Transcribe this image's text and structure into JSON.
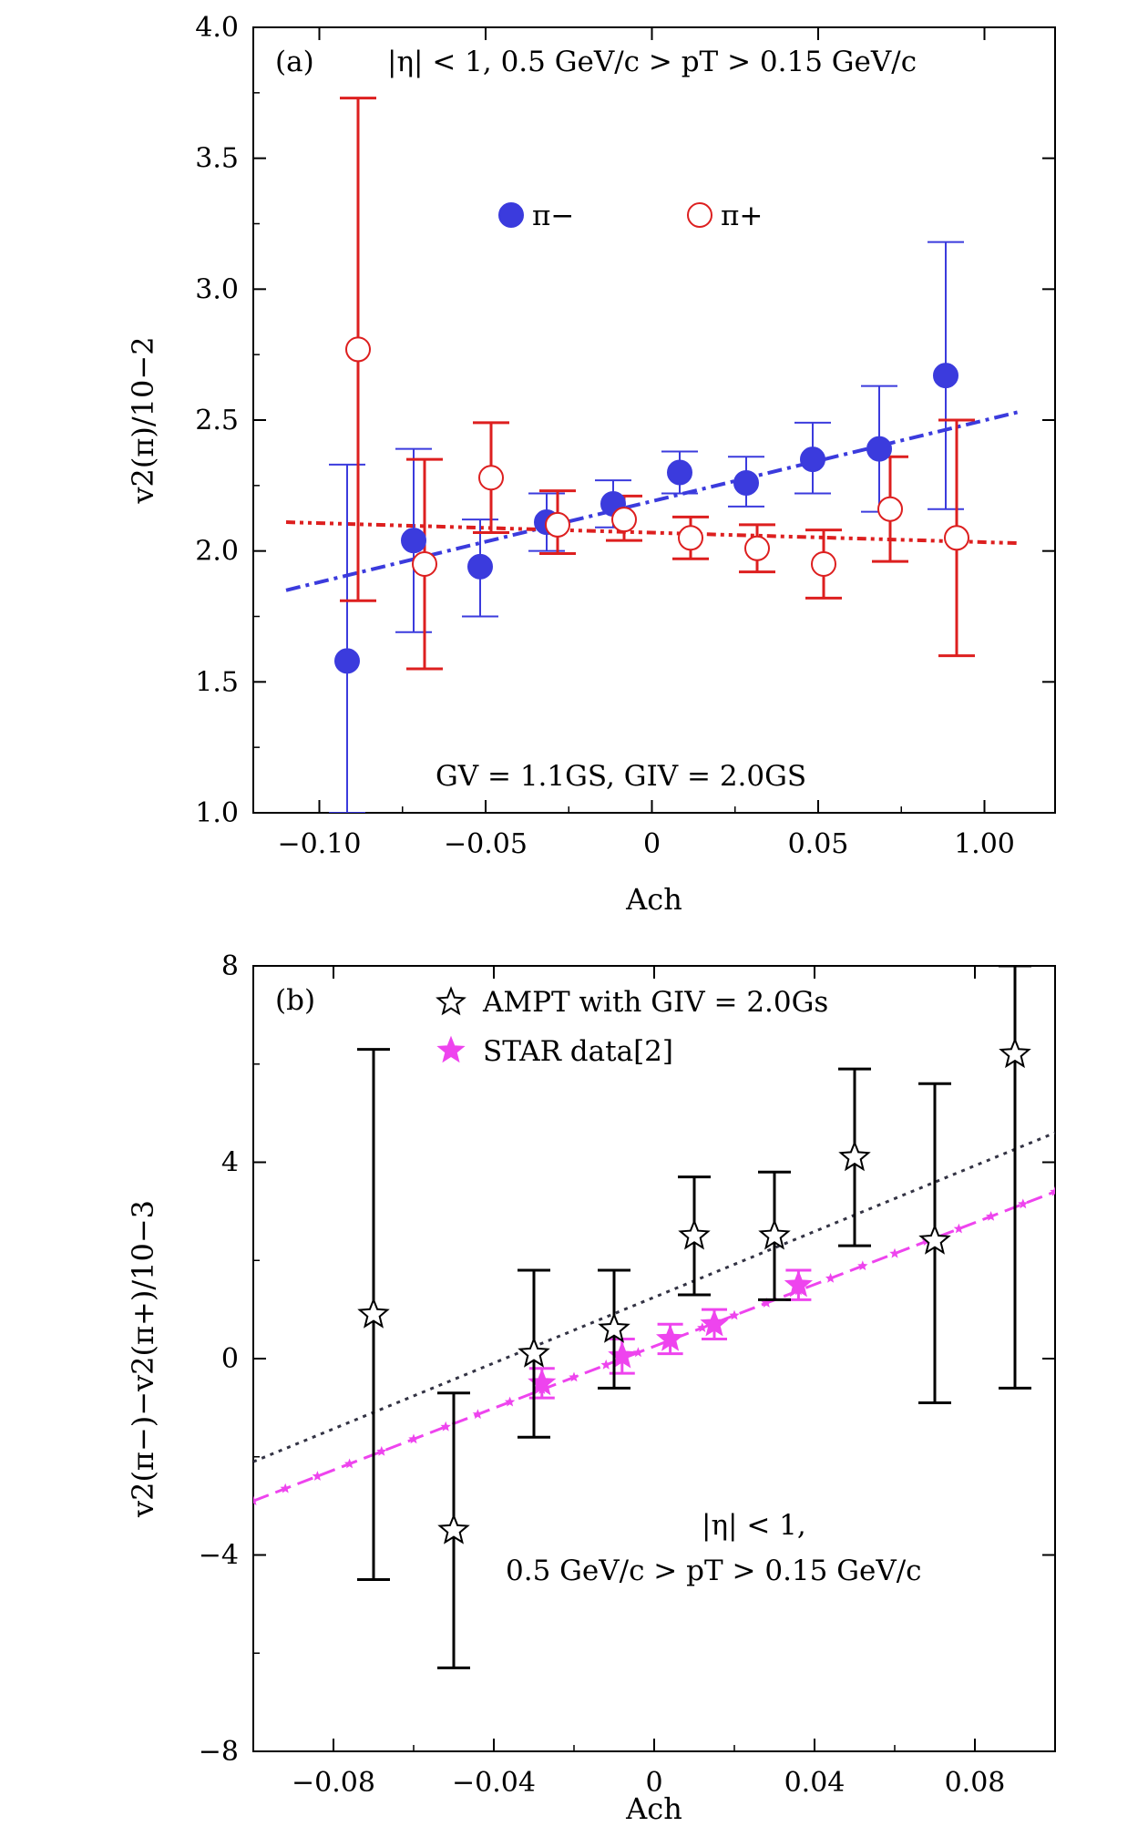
{
  "chart_data": [
    {
      "type": "scatter",
      "panel_label": "(a)",
      "xlabel": "Ach",
      "ylabel": "v2(π)/10−2",
      "x_tick_labels": [
        "−0.10",
        "−0.05",
        "0",
        "0.05",
        "1.00"
      ],
      "y_tick_labels": [
        "1.0",
        "1.5",
        "2.0",
        "2.5",
        "3.0",
        "3.5",
        "4.0"
      ],
      "ylim": [
        1.0,
        4.0
      ],
      "cut_text": "|η| < 1, 0.5 GeV/c > pT > 0.15 GeV/c",
      "param_text": "GV = 1.1GS, GIV = 2.0GS",
      "series": [
        {
          "name": "π−",
          "color": "#3b3bdd",
          "marker": "filled-circle",
          "x": [
            -0.09,
            -0.07,
            -0.05,
            -0.03,
            -0.01,
            0.01,
            0.03,
            0.05,
            0.07,
            0.09
          ],
          "y": [
            1.58,
            2.04,
            1.94,
            2.11,
            2.18,
            2.3,
            2.26,
            2.35,
            2.39,
            2.67
          ],
          "err_low": [
            1.0,
            1.69,
            1.75,
            2.0,
            2.09,
            2.22,
            2.17,
            2.22,
            2.15,
            2.16
          ],
          "err_high": [
            2.33,
            2.39,
            2.12,
            2.22,
            2.27,
            2.38,
            2.36,
            2.49,
            2.63,
            3.18
          ],
          "fit": {
            "x": [
              -0.11,
              0.11
            ],
            "y": [
              1.85,
              2.53
            ]
          }
        },
        {
          "name": "π+",
          "color": "#dd1f1f",
          "marker": "open-circle",
          "x": [
            -0.09,
            -0.07,
            -0.05,
            -0.03,
            -0.01,
            0.01,
            0.03,
            0.05,
            0.07,
            0.09
          ],
          "y": [
            2.77,
            1.95,
            2.28,
            2.1,
            2.12,
            2.05,
            2.01,
            1.95,
            2.16,
            2.05
          ],
          "err_low": [
            1.81,
            1.55,
            2.07,
            1.99,
            2.04,
            1.97,
            1.92,
            1.82,
            1.96,
            1.6
          ],
          "err_high": [
            3.73,
            2.35,
            2.49,
            2.23,
            2.21,
            2.13,
            2.1,
            2.08,
            2.36,
            2.5
          ],
          "fit": {
            "x": [
              -0.11,
              0.11
            ],
            "y": [
              2.11,
              2.03
            ]
          }
        }
      ]
    },
    {
      "type": "scatter",
      "panel_label": "(b)",
      "xlabel": "Ach",
      "ylabel": "v2(π−)−v2(π+)/10−3",
      "x_tick_labels": [
        "−0.08",
        "−0.04",
        "0",
        "0.04",
        "0.08"
      ],
      "y_tick_labels": [
        "−8",
        "−4",
        "0",
        "4",
        "8"
      ],
      "xlim": [
        -0.1,
        0.1
      ],
      "ylim": [
        -8,
        8
      ],
      "cut_text_1": "|η| < 1,",
      "cut_text_2": "0.5 GeV/c > pT > 0.15 GeV/c",
      "series": [
        {
          "name": "AMPT with GIV = 2.0Gs",
          "color": "#000000",
          "marker": "open-star",
          "x": [
            -0.07,
            -0.05,
            -0.03,
            -0.01,
            0.01,
            0.03,
            0.05,
            0.07,
            0.09
          ],
          "y": [
            0.9,
            -3.5,
            0.1,
            0.6,
            2.5,
            2.5,
            4.1,
            2.4,
            6.2
          ],
          "err_low": [
            -4.5,
            -6.3,
            -1.6,
            -0.6,
            1.3,
            1.2,
            2.3,
            -0.9,
            -0.6
          ],
          "err_high": [
            6.3,
            -0.7,
            1.8,
            1.8,
            3.7,
            3.8,
            5.9,
            5.6,
            8.0
          ],
          "fit": {
            "x": [
              -0.1,
              0.1
            ],
            "y": [
              -2.1,
              4.6
            ]
          }
        },
        {
          "name": "STAR data[2]",
          "color": "#ee44ee",
          "marker": "filled-star",
          "x": [
            -0.028,
            -0.008,
            0.004,
            0.015,
            0.036
          ],
          "y": [
            -0.5,
            0.05,
            0.4,
            0.7,
            1.5
          ],
          "err_low": [
            -0.8,
            -0.3,
            0.1,
            0.4,
            1.2
          ],
          "err_high": [
            -0.2,
            0.4,
            0.7,
            1.0,
            1.8
          ],
          "fit": {
            "x": [
              -0.1,
              0.1
            ],
            "y": [
              -2.9,
              3.4
            ]
          }
        }
      ]
    }
  ]
}
